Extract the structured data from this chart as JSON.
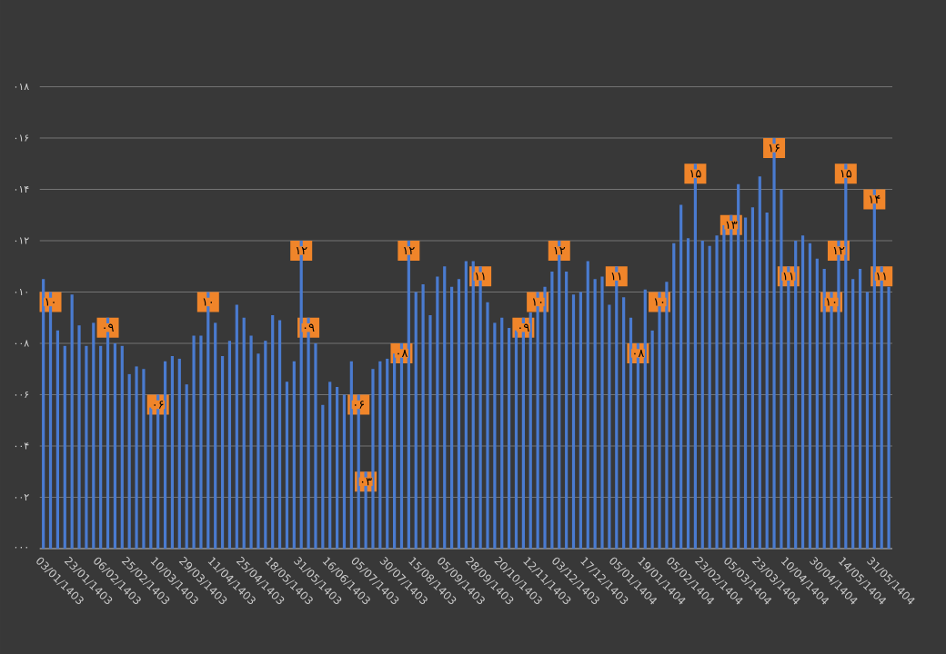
{
  "chart_data": {
    "type": "bar",
    "categories": [
      "03/01/1403",
      null,
      null,
      null,
      "23/01/1403",
      null,
      null,
      null,
      "06/02/1403",
      null,
      null,
      null,
      "25/02/1403",
      null,
      null,
      null,
      "10/03/1403",
      null,
      null,
      null,
      "29/03/1403",
      null,
      null,
      null,
      "11/04/1403",
      null,
      null,
      null,
      "25/04/1403",
      null,
      null,
      null,
      "18/05/1403",
      null,
      null,
      null,
      "31/05/1403",
      null,
      null,
      null,
      "16/06/1403",
      null,
      null,
      null,
      "05/07/1403",
      null,
      null,
      null,
      "30/07/1403",
      null,
      null,
      null,
      "15/08/1403",
      null,
      null,
      null,
      "05/09/1403",
      null,
      null,
      null,
      "28/09/1403",
      null,
      null,
      null,
      "20/10/1403",
      null,
      null,
      null,
      "12/11/1403",
      null,
      null,
      null,
      "03/12/1403",
      null,
      null,
      null,
      "17/12/1403",
      null,
      null,
      null,
      "05/01/1404",
      null,
      null,
      null,
      "19/01/1404",
      null,
      null,
      null,
      "05/02/1404",
      null,
      null,
      null,
      "23/02/1404",
      null,
      null,
      null,
      "05/03/1404",
      null,
      null,
      null,
      "23/03/1404",
      null,
      null,
      null,
      "10/04/1404",
      null,
      null,
      null,
      "30/04/1404",
      null,
      null,
      null,
      "14/05/1404",
      null,
      null,
      null,
      "31/05/1404",
      null,
      null
    ],
    "values": [
      10.5,
      10,
      8.5,
      7.9,
      9.9,
      8.7,
      7.9,
      8.8,
      7.9,
      9,
      8.0,
      7.9,
      6.8,
      7.1,
      7.0,
      5.5,
      6,
      7.3,
      7.5,
      7.4,
      6.4,
      8.3,
      8.3,
      10,
      8.8,
      7.5,
      8.1,
      9.5,
      9.0,
      8.3,
      7.6,
      8.1,
      9.1,
      8.9,
      6.5,
      7.3,
      12,
      9,
      8.0,
      5.6,
      6.5,
      6.3,
      6.0,
      7.3,
      6,
      3,
      7.0,
      7.3,
      7.4,
      7.6,
      8,
      12,
      10.0,
      10.3,
      9.1,
      10.6,
      11.0,
      10.2,
      10.5,
      11.2,
      11.2,
      11,
      9.6,
      8.8,
      9.0,
      8.6,
      8.5,
      9,
      9.2,
      10,
      10.2,
      10.8,
      12,
      10.8,
      9.9,
      10.0,
      11.2,
      10.5,
      10.6,
      9.5,
      11,
      9.8,
      9.0,
      8,
      10.1,
      8.5,
      10,
      10.4,
      11.9,
      13.4,
      12.1,
      15,
      12.0,
      11.8,
      12.2,
      12.6,
      13,
      14.2,
      12.9,
      13.3,
      14.5,
      13.1,
      16,
      14.0,
      11,
      12.0,
      12.2,
      11.9,
      11.3,
      10.9,
      10,
      12,
      15,
      10.5,
      10.9,
      10.0,
      14,
      11,
      10.2
    ],
    "value_labels": [
      null,
      "۱۰",
      null,
      null,
      null,
      null,
      null,
      null,
      null,
      "۰۹",
      null,
      null,
      null,
      null,
      null,
      null,
      "۰۶",
      null,
      null,
      null,
      null,
      null,
      null,
      "۱۰",
      null,
      null,
      null,
      null,
      null,
      null,
      null,
      null,
      null,
      null,
      null,
      null,
      "۱۲",
      "۰۹",
      null,
      null,
      null,
      null,
      null,
      null,
      "۰۶",
      "۰۳",
      null,
      null,
      null,
      null,
      "۰۸",
      "۱۲",
      null,
      null,
      null,
      null,
      null,
      null,
      null,
      null,
      null,
      "۱۱",
      null,
      null,
      null,
      null,
      null,
      "۰۹",
      null,
      "۱۰",
      null,
      null,
      "۱۲",
      null,
      null,
      null,
      null,
      null,
      null,
      null,
      "۱۱",
      null,
      null,
      "۰۸",
      null,
      null,
      "۱۰",
      null,
      null,
      null,
      null,
      "۱۵",
      null,
      null,
      null,
      null,
      "۱۳",
      null,
      null,
      null,
      null,
      null,
      "۱۶",
      null,
      "۱۱",
      null,
      null,
      null,
      null,
      null,
      "۱۰",
      "۱۲",
      "۱۵",
      null,
      null,
      null,
      "۱۴",
      "۱۱",
      null
    ],
    "color": "#4a7bd0",
    "ylim": [
      0,
      18
    ],
    "yticks": [
      {
        "value": 0,
        "label": "۰۰۰"
      },
      {
        "value": 2,
        "label": "۰۰۲"
      },
      {
        "value": 4,
        "label": "۰۰۴"
      },
      {
        "value": 6,
        "label": "۰۰۶"
      },
      {
        "value": 8,
        "label": "۰۰۸"
      },
      {
        "value": 10,
        "label": "۰۱۰"
      },
      {
        "value": 12,
        "label": "۰۱۲"
      },
      {
        "value": 14,
        "label": "۰۱۴"
      },
      {
        "value": 16,
        "label": "۰۱۶"
      },
      {
        "value": 18,
        "label": "۰۱۸"
      }
    ],
    "grid": "y"
  }
}
